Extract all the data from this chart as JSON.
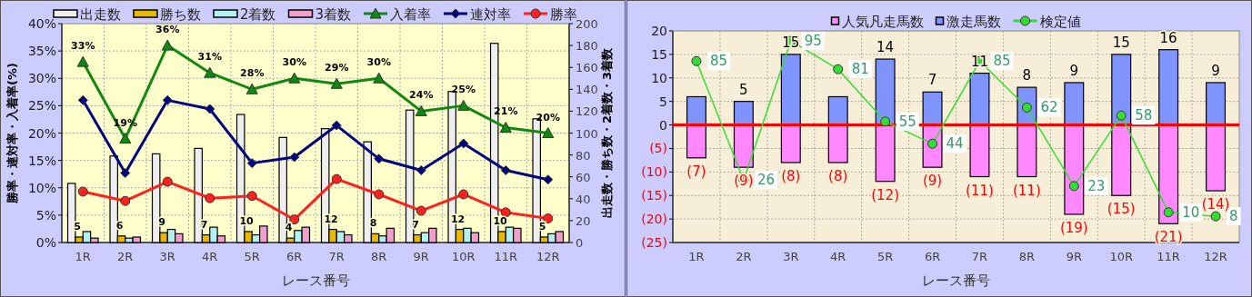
{
  "chart_data": [
    {
      "type": "bar",
      "xlabel": "レース番号",
      "ylabel": "勝率・連対率・入着率(%)",
      "y2label": "出走数・勝ち数・2着数・3着数",
      "legend": "top",
      "grid": true,
      "categories": [
        "1R",
        "2R",
        "3R",
        "4R",
        "5R",
        "6R",
        "7R",
        "8R",
        "9R",
        "10R",
        "11R",
        "12R"
      ],
      "ylim": [
        0,
        40
      ],
      "yticks": [
        {
          "value": 0,
          "label": "0%"
        },
        {
          "value": 5,
          "label": "5%"
        },
        {
          "value": 10,
          "label": "10%"
        },
        {
          "value": 15,
          "label": "15%"
        },
        {
          "value": 20,
          "label": "20%"
        },
        {
          "value": 25,
          "label": "25%"
        },
        {
          "value": 30,
          "label": "30%"
        },
        {
          "value": 35,
          "label": "35%"
        },
        {
          "value": 40,
          "label": "40%"
        }
      ],
      "y2lim": [
        0,
        200
      ],
      "y2ticks": [
        0,
        20,
        40,
        60,
        80,
        100,
        120,
        140,
        160,
        180,
        200
      ],
      "series": [
        {
          "name": "出走数",
          "axis": "y2",
          "color": "#eeeeee",
          "values": [
            54,
            79,
            81,
            86,
            117,
            96,
            104,
            92,
            121,
            138,
            182,
            113
          ]
        },
        {
          "name": "勝ち数",
          "axis": "y2",
          "color": "#e6b800",
          "values": [
            5,
            6,
            9,
            7,
            10,
            4,
            12,
            8,
            7,
            12,
            10,
            5
          ],
          "value_labels": [
            "5",
            "6",
            "9",
            "7",
            "10",
            "4",
            "12",
            "8",
            "7",
            "12",
            "10",
            "5"
          ]
        },
        {
          "name": "2着数",
          "axis": "y2",
          "color": "#b3f0f0",
          "values": [
            10,
            4,
            12,
            14,
            7,
            11,
            10,
            6,
            9,
            13,
            14,
            8
          ]
        },
        {
          "name": "3着数",
          "axis": "y2",
          "color": "#f0a0cc",
          "values": [
            4,
            5,
            8,
            6,
            15,
            14,
            7,
            13,
            13,
            9,
            13,
            10
          ]
        },
        {
          "name": "入着率",
          "type": "line",
          "marker": "triangle",
          "color": "#118811",
          "values": [
            33,
            19,
            36,
            31,
            28,
            30,
            29,
            30,
            24,
            25,
            21,
            20
          ],
          "value_labels": [
            "33%",
            "19%",
            "36%",
            "31%",
            "28%",
            "30%",
            "29%",
            "30%",
            "24%",
            "25%",
            "21%",
            "20%"
          ]
        },
        {
          "name": "連対率",
          "type": "line",
          "marker": "diamond",
          "color": "#000080",
          "values": [
            26.0,
            12.7,
            26.0,
            24.4,
            14.5,
            15.6,
            21.4,
            15.3,
            13.2,
            18.1,
            13.2,
            11.5
          ]
        },
        {
          "name": "勝率",
          "type": "line",
          "marker": "circle",
          "color": "#ff2020",
          "values": [
            9.3,
            7.6,
            11.1,
            8.1,
            8.5,
            4.2,
            11.6,
            8.8,
            5.8,
            8.8,
            5.5,
            4.4
          ]
        }
      ]
    },
    {
      "type": "bar",
      "xlabel": "レース番号",
      "legend": "top",
      "grid": true,
      "stacked": true,
      "categories": [
        "1R",
        "2R",
        "3R",
        "4R",
        "5R",
        "6R",
        "7R",
        "8R",
        "9R",
        "10R",
        "11R",
        "12R"
      ],
      "ylim": [
        -25,
        20
      ],
      "yticks": [
        {
          "value": -25,
          "label": "(25)"
        },
        {
          "value": -20,
          "label": "(20)"
        },
        {
          "value": -15,
          "label": "(15)"
        },
        {
          "value": -10,
          "label": "(10)"
        },
        {
          "value": -5,
          "label": "(5)"
        },
        0,
        5,
        10,
        15,
        20
      ],
      "y2lim": [
        -5,
        100
      ],
      "ref_lines": [
        {
          "axis": "y",
          "value": 0,
          "color": "#ff0000"
        }
      ],
      "series": [
        {
          "name": "人気凡走馬数",
          "color": "#ff88ff",
          "values": [
            -7,
            -9,
            -8,
            -8,
            -12,
            -9,
            -11,
            -11,
            -19,
            -15,
            -21,
            -14
          ],
          "value_labels": [
            "(7)",
            "(9)",
            "(8)",
            "(8)",
            "(12)",
            "(9)",
            "(11)",
            "(11)",
            "(19)",
            "(15)",
            "(21)",
            "(14)"
          ]
        },
        {
          "name": "激走馬数",
          "color": "#8094ff",
          "values": [
            6,
            5,
            15,
            6,
            14,
            7,
            11,
            8,
            9,
            15,
            16,
            9
          ],
          "value_labels": [
            null,
            "5",
            "15",
            null,
            "14",
            "7",
            "11",
            "8",
            "9",
            "15",
            "16",
            "9"
          ]
        },
        {
          "name": "検定値",
          "type": "line",
          "axis": "y2",
          "marker": "circle",
          "color": "#33dd33",
          "values": [
            85,
            26,
            95,
            81,
            55,
            44,
            85,
            62,
            23,
            58,
            10,
            8
          ],
          "value_labels": [
            "85",
            "26",
            "95",
            "81",
            "55",
            "44",
            "85",
            "62",
            "23",
            "58",
            "10",
            "8"
          ]
        }
      ]
    }
  ]
}
